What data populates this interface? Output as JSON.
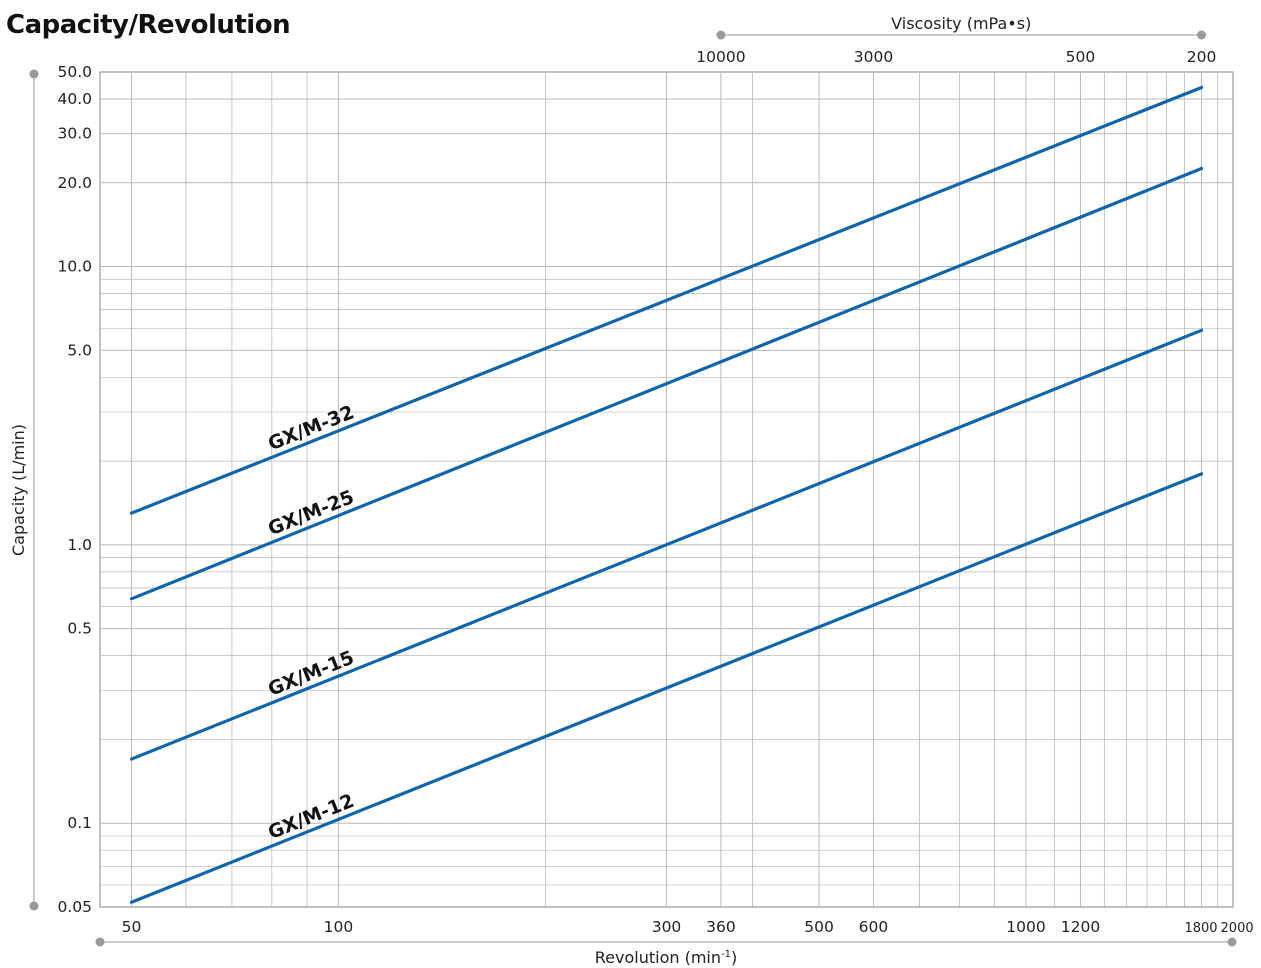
{
  "chart_data": {
    "type": "line",
    "title": "Capacity/Revolution",
    "xlabel": "Revolution (min",
    "xlabel_sup": "-1",
    "xlabel_end": ")",
    "ylabel": "Capacity (L/min)",
    "x2label": "Viscosity (mPa•s)",
    "xscale": "log",
    "yscale": "log",
    "xlim": [
      45,
      2000
    ],
    "ylim": [
      0.05,
      50
    ],
    "grid": true,
    "x_ticks": [
      {
        "value": 50,
        "label": "50"
      },
      {
        "value": 100,
        "label": "100"
      },
      {
        "value": 300,
        "label": "300"
      },
      {
        "value": 360,
        "label": "360"
      },
      {
        "value": 500,
        "label": "500"
      },
      {
        "value": 600,
        "label": "600"
      },
      {
        "value": 1000,
        "label": "1000"
      },
      {
        "value": 1200,
        "label": "1200"
      },
      {
        "value": 1800,
        "label": "1800"
      },
      {
        "value": 2000,
        "label": "2000"
      }
    ],
    "y_ticks": [
      {
        "value": 0.05,
        "label": "0.05"
      },
      {
        "value": 0.1,
        "label": "0.1"
      },
      {
        "value": 0.5,
        "label": "0.5"
      },
      {
        "value": 1,
        "label": "1.0"
      },
      {
        "value": 5,
        "label": "5.0"
      },
      {
        "value": 10,
        "label": "10.0"
      },
      {
        "value": 20,
        "label": "20.0"
      },
      {
        "value": 30,
        "label": "30.0"
      },
      {
        "value": 40,
        "label": "40.0"
      },
      {
        "value": 50,
        "label": "50.0"
      }
    ],
    "viscosity_ticks": [
      {
        "rev": 360,
        "label": "10000"
      },
      {
        "rev": 600,
        "label": "3000"
      },
      {
        "rev": 1200,
        "label": "500"
      },
      {
        "rev": 1800,
        "label": "200"
      }
    ],
    "series": [
      {
        "name": "GX/M-32",
        "x": [
          50,
          1800
        ],
        "y": [
          1.3,
          44
        ]
      },
      {
        "name": "GX/M-25",
        "x": [
          50,
          1800
        ],
        "y": [
          0.64,
          22.5
        ]
      },
      {
        "name": "GX/M-15",
        "x": [
          50,
          1800
        ],
        "y": [
          0.17,
          5.9
        ]
      },
      {
        "name": "GX/M-12",
        "x": [
          50,
          1800
        ],
        "y": [
          0.052,
          1.8
        ]
      }
    ]
  },
  "colors": {
    "series": "#1264a8",
    "grid": "#b9b9b9",
    "frame": "#999999",
    "axis_dot": "#9a9a9a"
  }
}
